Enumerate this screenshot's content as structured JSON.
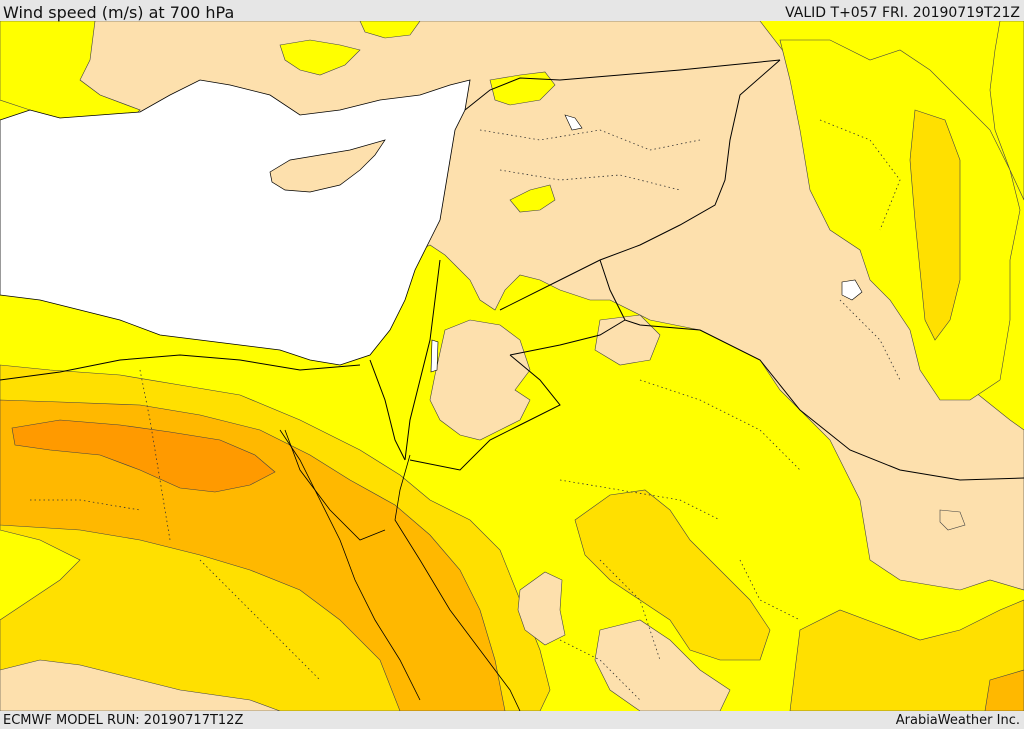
{
  "header": {
    "title": "Wind speed (m/s) at 700 hPa",
    "valid": "VALID T+057 FRI. 20190719T21Z"
  },
  "footer": {
    "model_run": "ECMWF MODEL RUN: 20190717T12Z",
    "credit": "ArabiaWeather Inc."
  },
  "map": {
    "region": "Eastern Mediterranean / Levant / Egypt / Iraq",
    "field": "wind speed",
    "level": "700 hPa",
    "sea_color": "#ffffff",
    "shading_colors": {
      "calm": "#fde0ad",
      "light": "#ffff00",
      "moderate": "#ffe000",
      "fresh": "#ffb800",
      "strong": "#ff9a00"
    },
    "border_color": "#000000"
  }
}
